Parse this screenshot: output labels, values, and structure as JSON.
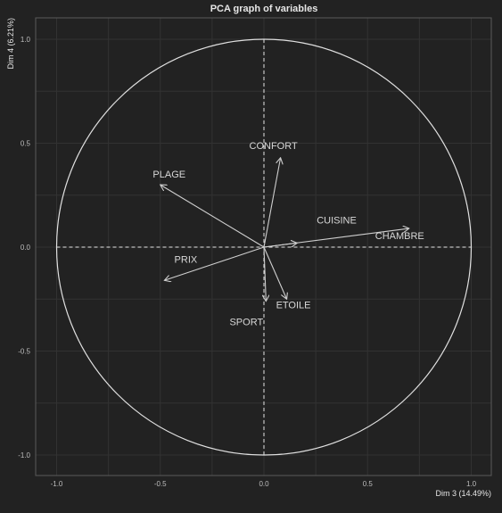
{
  "colors": {
    "background": "#222222",
    "grid": "#323232",
    "axis_lines": "#e6e6e6",
    "arrows": "#cfcfcf",
    "text": "#d8d8d8"
  },
  "chart_data": {
    "type": "scatter",
    "subtype": "pca-correlation-circle",
    "title": "PCA graph of variables",
    "xlabel": "Dim 3 (14.49%)",
    "ylabel": "Dim 4 (6.21%)",
    "xlim": [
      -1.1,
      1.1
    ],
    "ylim": [
      -1.1,
      1.1
    ],
    "xticks": [
      -1.0,
      -0.5,
      0.0,
      0.5,
      1.0
    ],
    "yticks": [
      -1.0,
      -0.5,
      0.0,
      0.5,
      1.0
    ],
    "x_tick_labels": [
      "-1.0",
      "-0.5",
      "0.0",
      "0.5",
      "1.0"
    ],
    "y_tick_labels": [
      "-1.0",
      "-0.5",
      "0.0",
      "0.5",
      "1.0"
    ],
    "grid": true,
    "unit_circle": true,
    "variables": [
      {
        "name": "PLAGE",
        "x": -0.5,
        "y": 0.3
      },
      {
        "name": "CONFORT",
        "x": 0.08,
        "y": 0.43
      },
      {
        "name": "CUISINE",
        "x": 0.16,
        "y": 0.02
      },
      {
        "name": "CHAMBRE",
        "x": 0.7,
        "y": 0.09
      },
      {
        "name": "PRIX",
        "x": -0.48,
        "y": -0.16
      },
      {
        "name": "ETOILE",
        "x": 0.11,
        "y": -0.25
      },
      {
        "name": "SPORT",
        "x": 0.01,
        "y": -0.26
      }
    ]
  }
}
